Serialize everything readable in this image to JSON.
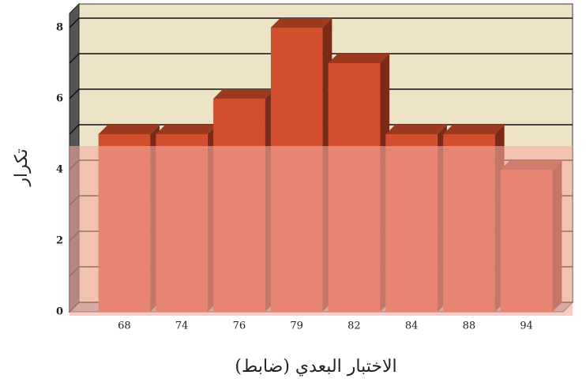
{
  "chart_data": {
    "type": "bar",
    "categories": [
      "68",
      "74",
      "76",
      "79",
      "82",
      "84",
      "88",
      "94"
    ],
    "values": [
      5,
      5,
      6,
      8,
      7,
      5,
      5,
      4
    ],
    "color": "#d24f2e",
    "ylim": [
      0,
      8.4
    ],
    "yticks": [
      0,
      2,
      4,
      6,
      8
    ],
    "minor_yticks": [
      1,
      3,
      5,
      7
    ],
    "grid": true,
    "xlabel": "الاختبار البعدي (ضابط)",
    "ylabel": "تكرار"
  }
}
